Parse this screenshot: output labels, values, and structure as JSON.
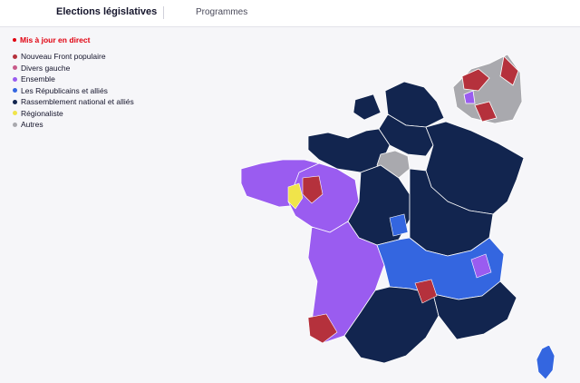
{
  "tabs": {
    "active": "Elections législatives",
    "other": "Programmes"
  },
  "live_label": "Mis à jour en direct",
  "colors": {
    "live": "#e1000f",
    "nfp": "#b5313c",
    "dvg": "#c85a8a",
    "ens": "#9a5cf0",
    "lr": "#3466e0",
    "rn": "#12254f",
    "reg": "#f0e44a",
    "autres": "#a9a9ae"
  },
  "legend": [
    {
      "label": "Nouveau Front populaire",
      "color": "#b5313c"
    },
    {
      "label": "Divers gauche",
      "color": "#c85a8a"
    },
    {
      "label": "Ensemble",
      "color": "#9a5cf0"
    },
    {
      "label": "Les Républicains et alliés",
      "color": "#3466e0"
    },
    {
      "label": "Rassemblement national et alliés",
      "color": "#12254f"
    },
    {
      "label": "Régionaliste",
      "color": "#f0e44a"
    },
    {
      "label": "Autres",
      "color": "#a9a9ae"
    }
  ],
  "map_regions": [
    {
      "name": "nord-pas-de-calais",
      "winner": "rn"
    },
    {
      "name": "picardie",
      "winner": "rn"
    },
    {
      "name": "normandie",
      "winner": "rn"
    },
    {
      "name": "bretagne",
      "winner": "ens"
    },
    {
      "name": "ile-de-france",
      "winner": "autres"
    },
    {
      "name": "grand-est",
      "winner": "rn"
    },
    {
      "name": "pays-de-la-loire",
      "winner": "ens"
    },
    {
      "name": "centre",
      "winner": "rn"
    },
    {
      "name": "bourgogne",
      "winner": "rn"
    },
    {
      "name": "nouvelle-aquitaine",
      "winner": "ens"
    },
    {
      "name": "auvergne-rhone-alpes",
      "winner": "lr"
    },
    {
      "name": "occitanie",
      "winner": "rn"
    },
    {
      "name": "paca",
      "winner": "rn"
    },
    {
      "name": "corse",
      "winner": "lr"
    }
  ]
}
